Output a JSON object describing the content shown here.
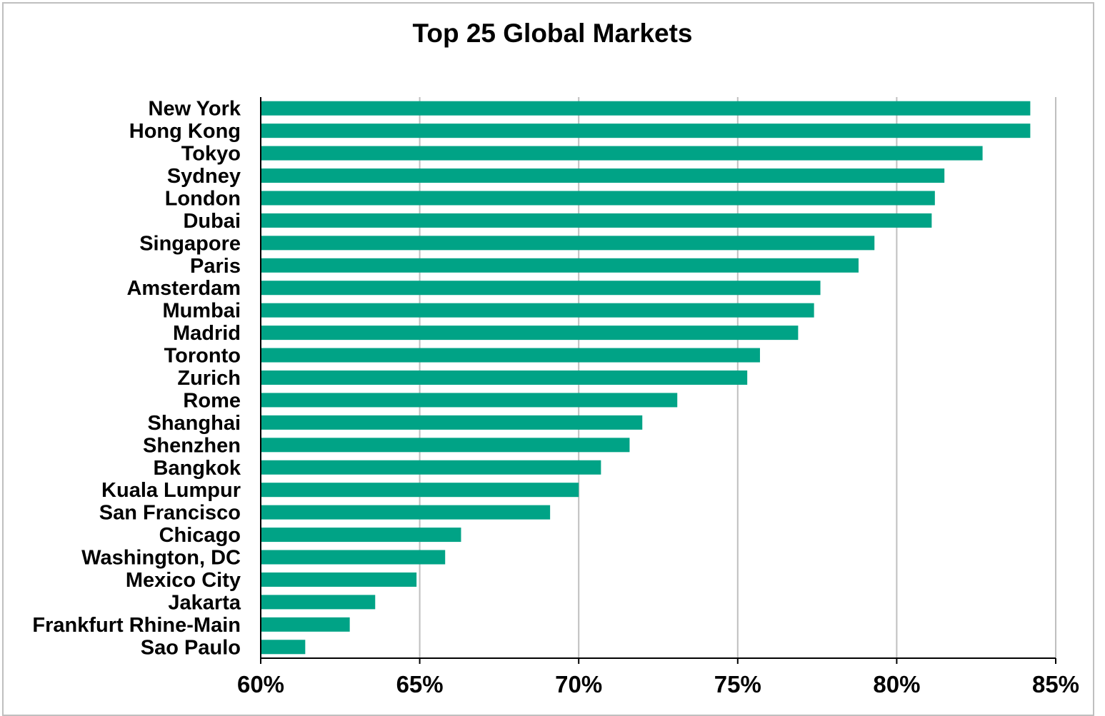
{
  "chart_data": {
    "type": "bar",
    "orientation": "horizontal",
    "title": "Top 25 Global Markets",
    "xlabel": "",
    "ylabel": "",
    "xlim": [
      0.6,
      0.85
    ],
    "x_ticks": [
      "60%",
      "65%",
      "70%",
      "75%",
      "80%",
      "85%"
    ],
    "grid": true,
    "legend": "none",
    "bar_color": "#00A386",
    "categories": [
      "New York",
      "Hong Kong",
      "Tokyo",
      "Sydney",
      "London",
      "Dubai",
      "Singapore",
      "Paris",
      "Amsterdam",
      "Mumbai",
      "Madrid",
      "Toronto",
      "Zurich",
      "Rome",
      "Shanghai",
      "Shenzhen",
      "Bangkok",
      "Kuala Lumpur",
      "San Francisco",
      "Chicago",
      "Washington, DC",
      "Mexico City",
      "Jakarta",
      "Frankfurt Rhine-Main",
      "Sao Paulo"
    ],
    "values": [
      0.842,
      0.842,
      0.827,
      0.815,
      0.812,
      0.811,
      0.793,
      0.788,
      0.776,
      0.774,
      0.769,
      0.757,
      0.753,
      0.731,
      0.72,
      0.716,
      0.707,
      0.7,
      0.691,
      0.663,
      0.658,
      0.649,
      0.636,
      0.628,
      0.614
    ]
  }
}
